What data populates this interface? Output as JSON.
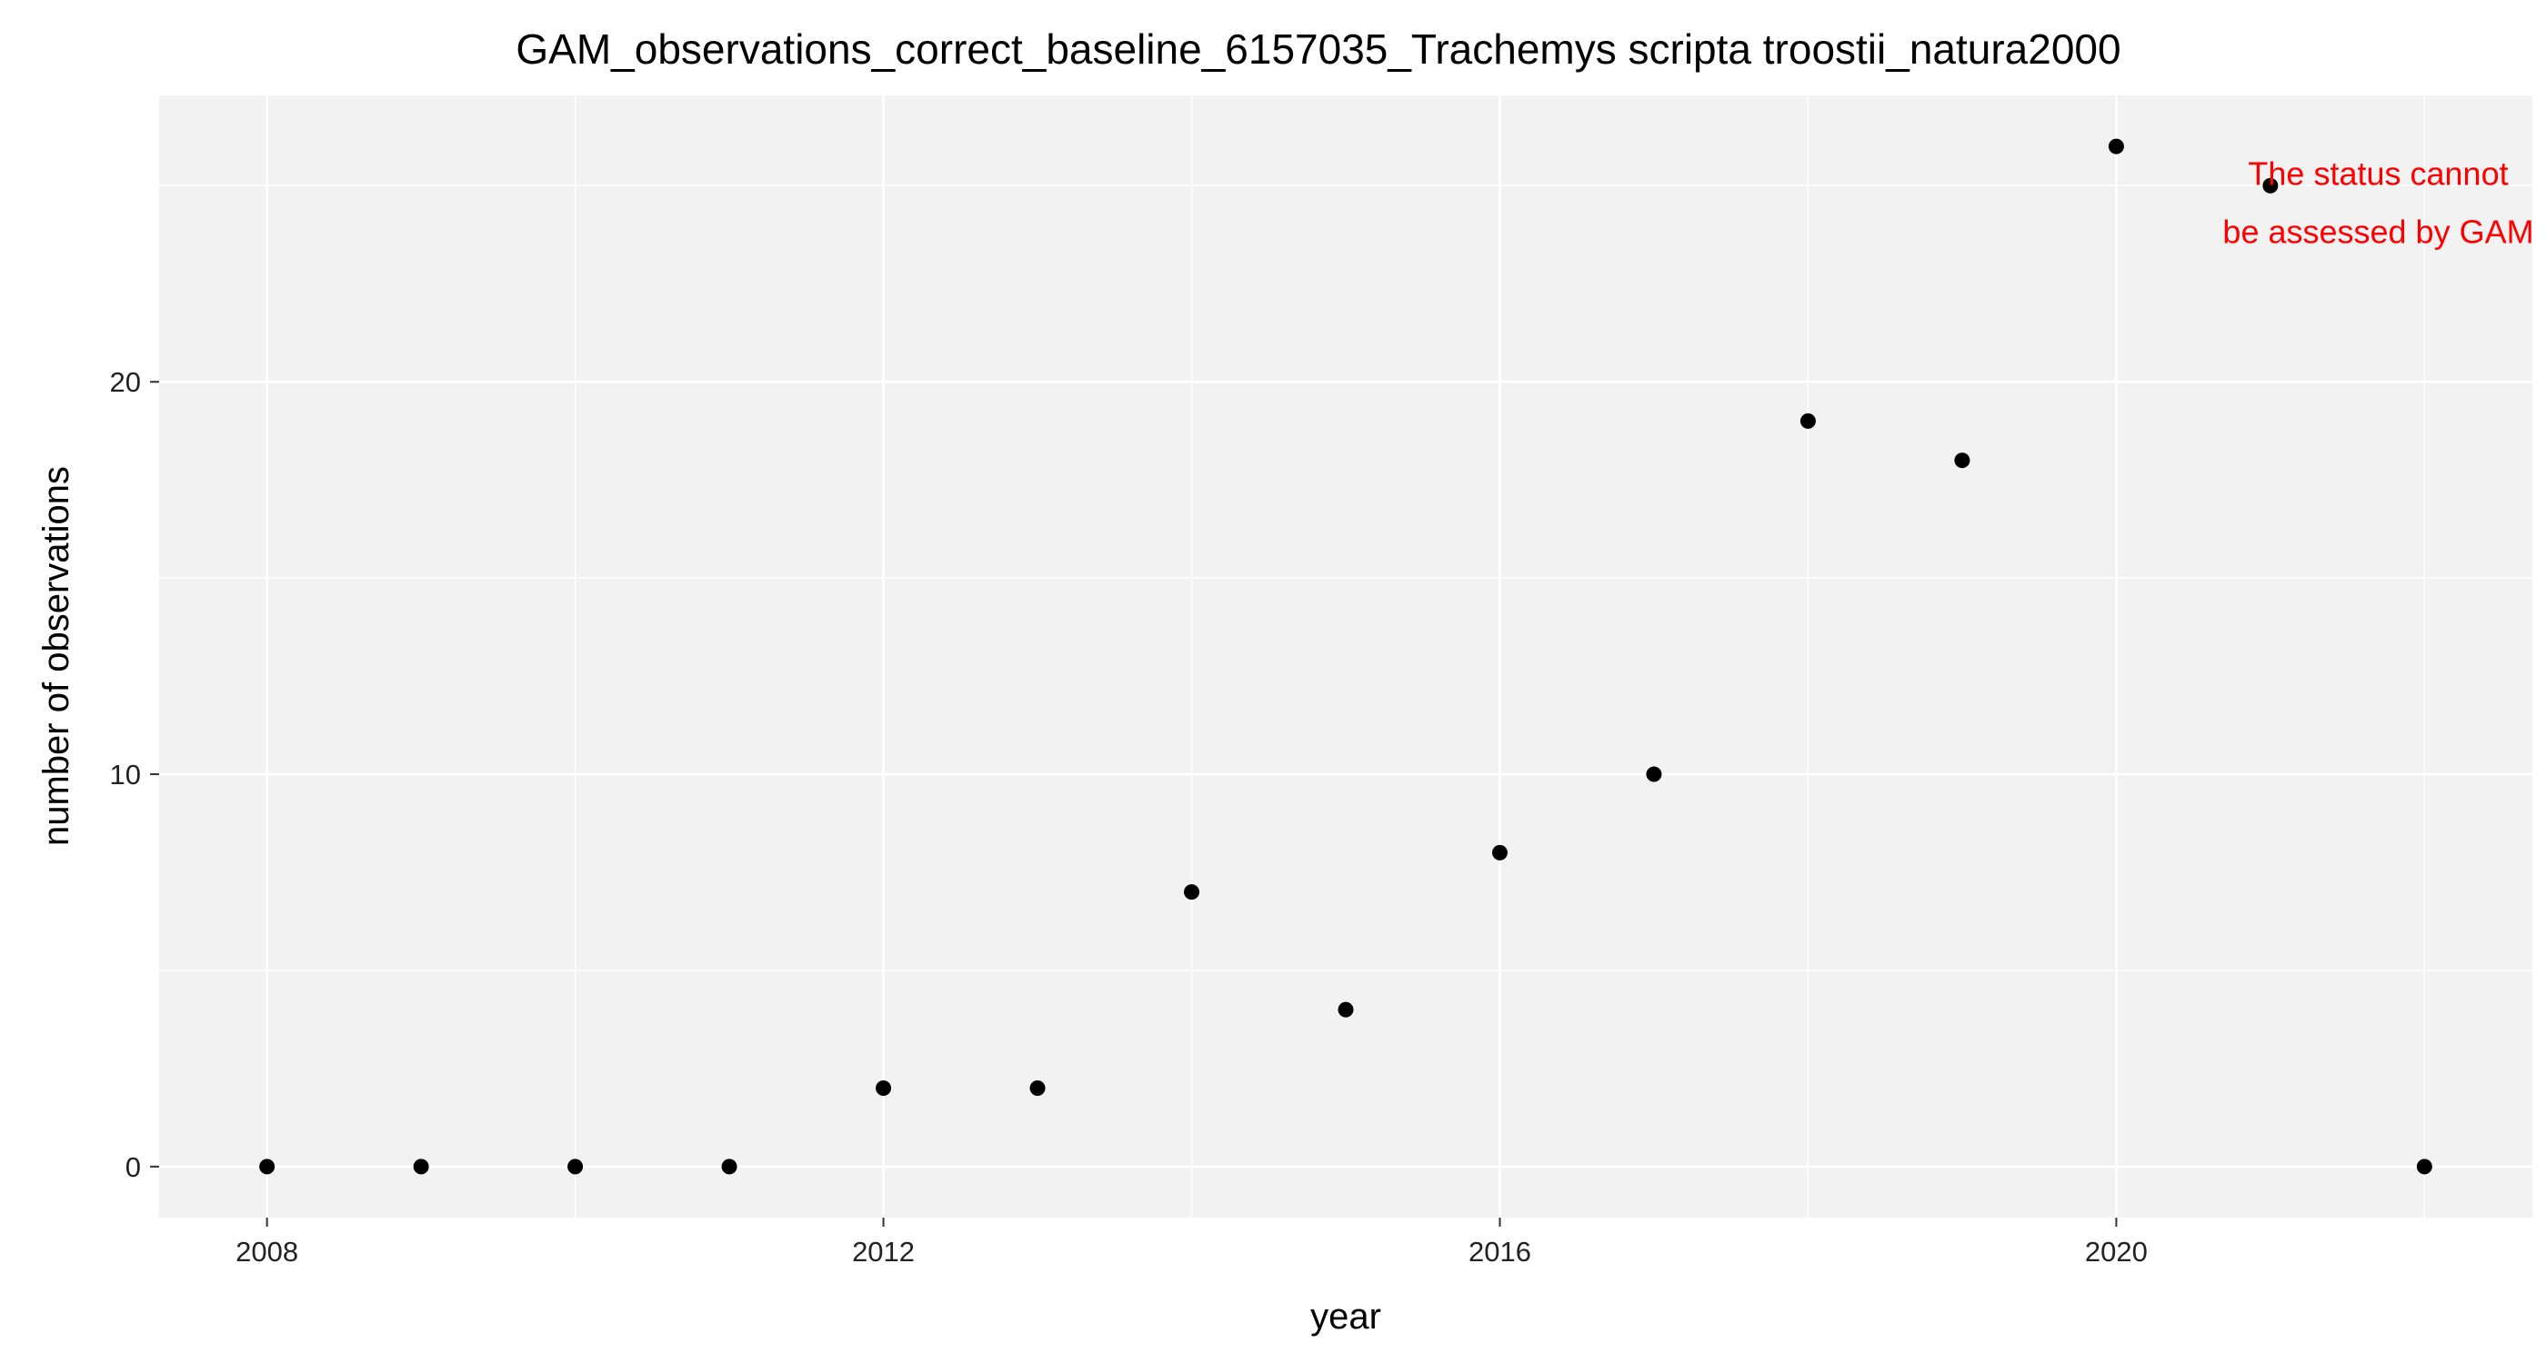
{
  "chart_data": {
    "type": "scatter",
    "title": "GAM_observations_correct_baseline_6157035_Trachemys scripta troostii_natura2000",
    "xlabel": "year",
    "ylabel": "number of observations",
    "x": [
      2008,
      2009,
      2010,
      2011,
      2012,
      2013,
      2014,
      2015,
      2016,
      2017,
      2018,
      2019,
      2020,
      2021,
      2022
    ],
    "y": [
      0,
      0,
      0,
      0,
      2,
      2,
      7,
      4,
      8,
      10,
      19,
      18,
      26,
      25,
      0
    ],
    "xlim": [
      2007.3,
      2022.7
    ],
    "ylim": [
      -1.3,
      27.3
    ],
    "x_ticks": [
      2008,
      2012,
      2016,
      2020
    ],
    "y_ticks": [
      0,
      10,
      20
    ],
    "grid": true,
    "annotation": {
      "lines": [
        "The status cannot",
        "be assessed by GAM"
      ],
      "color": "#ff0000",
      "x": 2021.7,
      "y": 24.5
    },
    "colors": {
      "panel_background": "#f2f2f2",
      "grid_major": "#ffffff",
      "point": "#000000"
    }
  }
}
